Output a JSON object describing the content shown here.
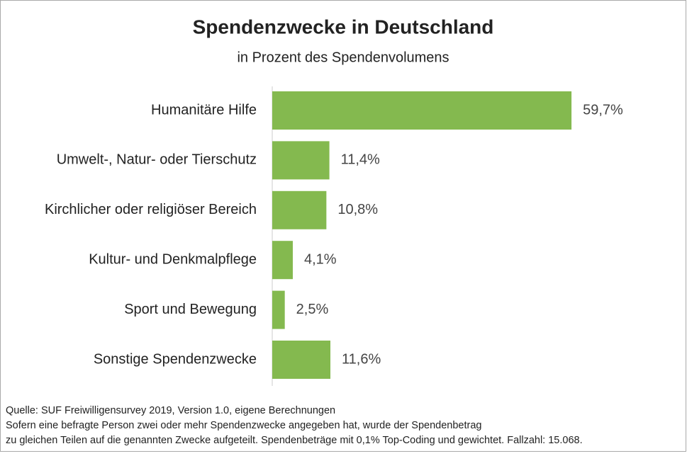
{
  "chart_data": {
    "type": "bar",
    "orientation": "horizontal",
    "title": "Spendenzwecke in Deutschland",
    "subtitle": "in Prozent des Spendenvolumens",
    "categories": [
      "Humanitäre Hilfe",
      "Umwelt-, Natur- oder Tierschutz",
      "Kirchlicher oder religiöser Bereich",
      "Kultur- und Denkmalpflege",
      "Sport und Bewegung",
      "Sonstige Spendenzwecke"
    ],
    "values": [
      59.7,
      11.4,
      10.8,
      4.1,
      2.5,
      11.6
    ],
    "value_labels": [
      "59,7%",
      "11,4%",
      "10,8%",
      "4,1%",
      "2,5%",
      "11,6%"
    ],
    "color": "#84b94f",
    "notes": [
      "Quelle: SUF Freiwilligensurvey 2019, Version 1.0, eigene Berechnungen",
      "Sofern eine befragte Person zwei oder mehr Spendenzwecke angegeben hat, wurde der Spendenbetrag",
      "zu gleichen Teilen auf die genannten Zwecke aufgeteilt. Spendenbeträge mit 0,1% Top-Coding und gewichtet. Fallzahl: 15.068."
    ]
  }
}
